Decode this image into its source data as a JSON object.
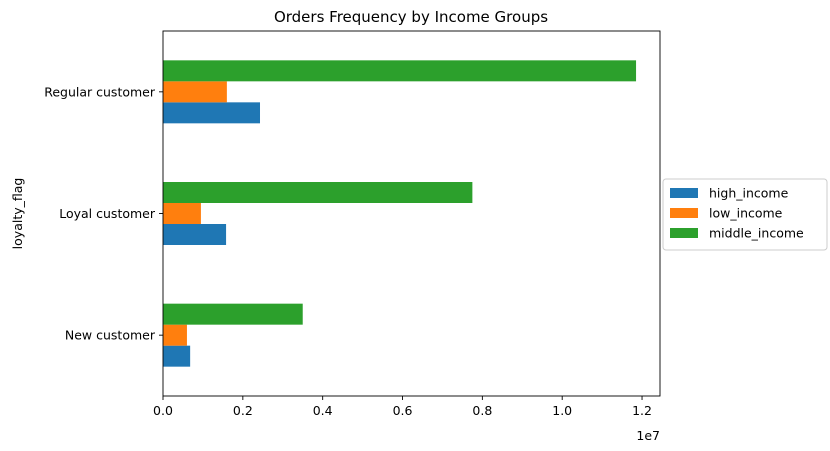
{
  "chart_data": {
    "type": "bar",
    "orientation": "horizontal",
    "title": "Orders Frequency by Income Groups",
    "xlabel": "",
    "ylabel": "loyalty_flag",
    "x_offset_label": "1e7",
    "categories": [
      "New customer",
      "Loyal customer",
      "Regular customer"
    ],
    "xlim": [
      0,
      1.245
    ],
    "xticks": [
      0.0,
      0.2,
      0.4,
      0.6,
      0.8,
      1.0,
      1.2
    ],
    "xtick_labels": [
      "0.0",
      "0.2",
      "0.4",
      "0.6",
      "0.8",
      "1.0",
      "1.2"
    ],
    "series": [
      {
        "name": "high_income",
        "color": "#1f77b4",
        "values": [
          0.068,
          0.158,
          0.243
        ]
      },
      {
        "name": "low_income",
        "color": "#ff7f0e",
        "values": [
          0.06,
          0.095,
          0.16
        ]
      },
      {
        "name": "middle_income",
        "color": "#2ca02c",
        "values": [
          0.35,
          0.775,
          1.185
        ]
      }
    ],
    "legend": {
      "placement": "center-right-outside"
    },
    "grid": false
  }
}
